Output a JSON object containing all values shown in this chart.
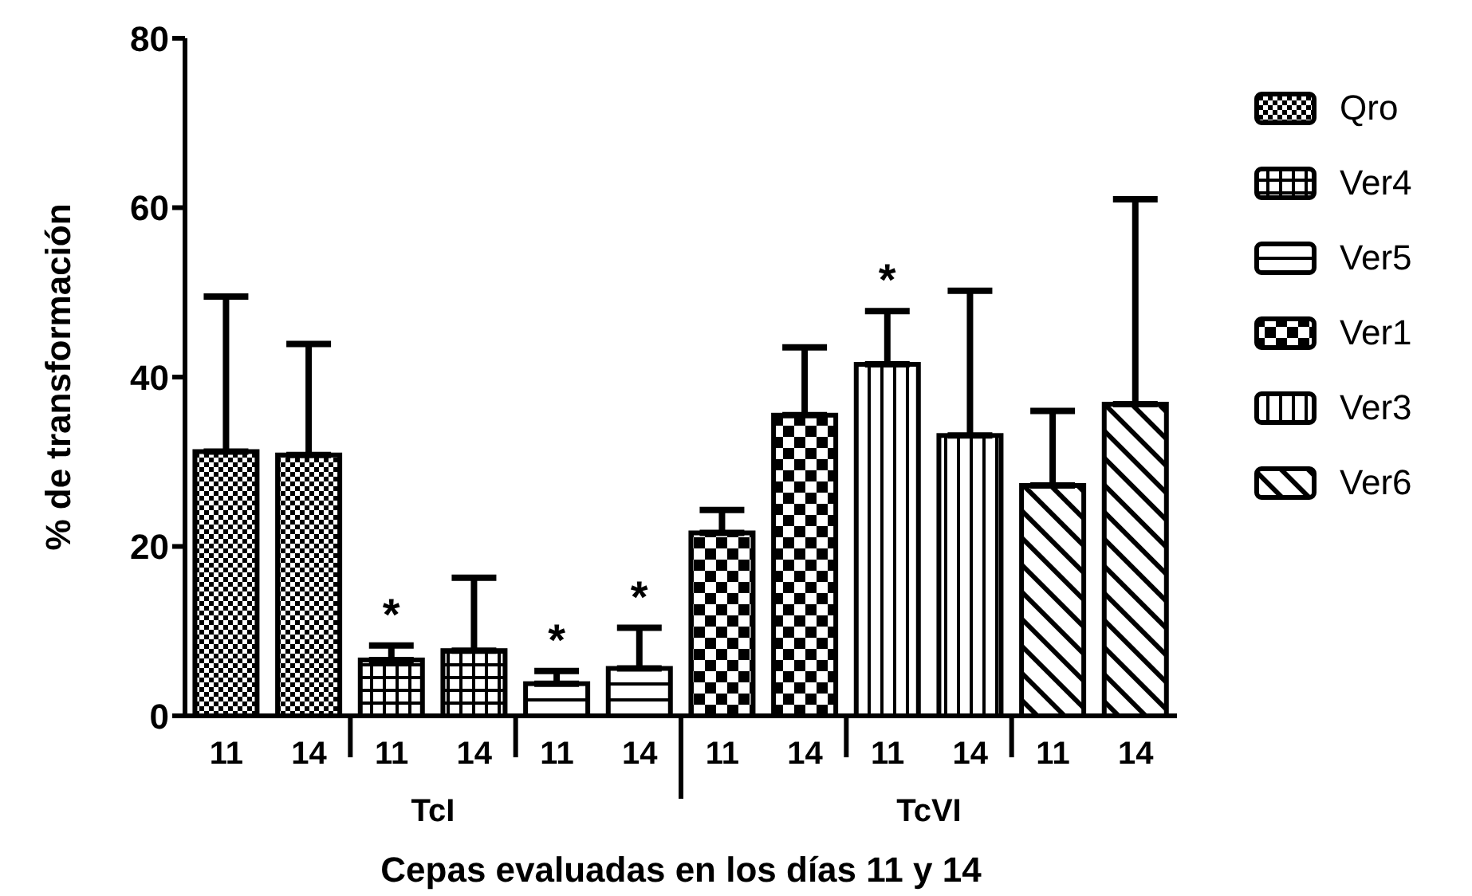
{
  "chart_data": {
    "type": "bar",
    "xlabel": "Cepas evaluadas en los días 11 y 14",
    "ylabel": "% de transformación",
    "categories": [
      "11",
      "14",
      "11",
      "14",
      "11",
      "14",
      "11",
      "14",
      "11",
      "14",
      "11",
      "14"
    ],
    "ylim": [
      0,
      80
    ],
    "yticks": [
      0,
      20,
      40,
      60,
      80
    ],
    "legend": "right",
    "annotations": [
      "TcI",
      "TcVI"
    ],
    "series": [
      {
        "name": "Qro",
        "color": "#000000",
        "values": [
          31.2,
          30.8,
          null,
          null,
          null,
          null,
          null,
          null,
          null,
          null,
          null,
          null
        ],
        "errors": [
          [
            31.2,
            49.5
          ],
          [
            30.8,
            43.9
          ],
          null,
          null,
          null,
          null,
          null,
          null,
          null,
          null,
          null,
          null
        ]
      },
      {
        "name": "Ver4",
        "color": "#000000",
        "values": [
          null,
          null,
          6.6,
          7.7,
          null,
          null,
          null,
          null,
          null,
          null,
          null,
          null
        ],
        "errors": [
          null,
          null,
          [
            6.6,
            8.3
          ],
          [
            7.7,
            16.3
          ],
          null,
          null,
          null,
          null,
          null,
          null,
          null,
          null
        ],
        "value_labels": [
          null,
          null,
          "*",
          null,
          null,
          null,
          null,
          null,
          null,
          null,
          null,
          null
        ]
      },
      {
        "name": "Ver5",
        "color": "#000000",
        "values": [
          null,
          null,
          null,
          null,
          3.8,
          5.6,
          null,
          null,
          null,
          null,
          null,
          null
        ],
        "errors": [
          null,
          null,
          null,
          null,
          [
            3.8,
            5.3
          ],
          [
            5.6,
            10.4
          ],
          null,
          null,
          null,
          null,
          null,
          null
        ],
        "value_labels": [
          null,
          null,
          null,
          null,
          "*",
          "*",
          null,
          null,
          null,
          null,
          null,
          null
        ]
      },
      {
        "name": "Ver1",
        "color": "#000000",
        "values": [
          null,
          null,
          null,
          null,
          null,
          null,
          21.6,
          35.5,
          null,
          null,
          null,
          null
        ],
        "errors": [
          null,
          null,
          null,
          null,
          null,
          null,
          [
            21.6,
            24.3
          ],
          [
            35.5,
            43.5
          ],
          null,
          null,
          null,
          null
        ]
      },
      {
        "name": "Ver3",
        "color": "#000000",
        "values": [
          null,
          null,
          null,
          null,
          null,
          null,
          null,
          null,
          41.5,
          33.1,
          null,
          null
        ],
        "errors": [
          null,
          null,
          null,
          null,
          null,
          null,
          null,
          null,
          [
            41.5,
            47.8
          ],
          [
            33.1,
            50.2
          ],
          null,
          null
        ],
        "value_labels": [
          null,
          null,
          null,
          null,
          null,
          null,
          null,
          null,
          "*",
          null,
          null,
          null
        ]
      },
      {
        "name": "Ver6",
        "color": "#000000",
        "values": [
          null,
          null,
          null,
          null,
          null,
          null,
          null,
          null,
          null,
          null,
          27.2,
          36.8
        ],
        "errors": [
          null,
          null,
          null,
          null,
          null,
          null,
          null,
          null,
          null,
          null,
          [
            27.2,
            36.0
          ],
          [
            36.8,
            61.0
          ]
        ]
      }
    ]
  }
}
